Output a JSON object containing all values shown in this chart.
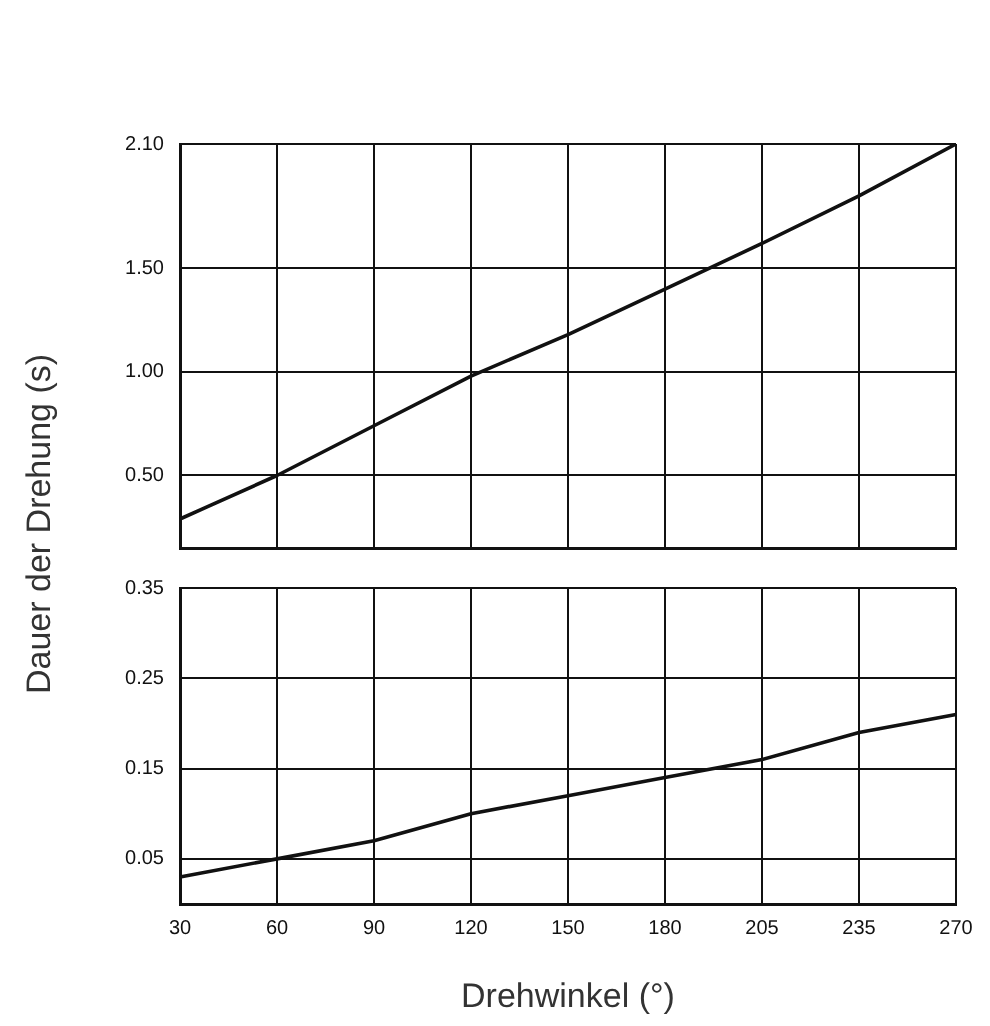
{
  "chart_data": [
    {
      "type": "line",
      "ylabel": "Dauer der Drehung (s)",
      "categories": [
        "30",
        "60",
        "90",
        "120",
        "150",
        "180",
        "205",
        "235",
        "270"
      ],
      "series": [
        {
          "color": "#111111",
          "values": [
            0.29,
            0.5,
            0.74,
            0.98,
            1.18,
            1.4,
            1.62,
            1.85,
            2.1
          ]
        }
      ],
      "ylim": [
        0.15,
        2.1
      ],
      "yticks": [
        {
          "value": 0.5,
          "label": "0.50"
        },
        {
          "value": 1,
          "label": "1.00"
        },
        {
          "value": 1.5,
          "label": "1.50"
        },
        {
          "value": 2.1,
          "label": "2.10"
        }
      ],
      "grid": true,
      "legend": false,
      "marker": "none",
      "tick_labels": "y"
    },
    {
      "type": "line",
      "xlabel": "Drehwinkel (°)",
      "categories": [
        "30",
        "60",
        "90",
        "120",
        "150",
        "180",
        "205",
        "235",
        "270"
      ],
      "series": [
        {
          "color": "#111111",
          "values": [
            0.03,
            0.05,
            0.07,
            0.1,
            0.12,
            0.14,
            0.16,
            0.19,
            0.21
          ]
        }
      ],
      "ylim": [
        0,
        0.35
      ],
      "yticks": [
        0.05,
        0.15,
        0.25,
        0.35
      ],
      "grid": true,
      "legend": false,
      "marker": "none"
    }
  ]
}
